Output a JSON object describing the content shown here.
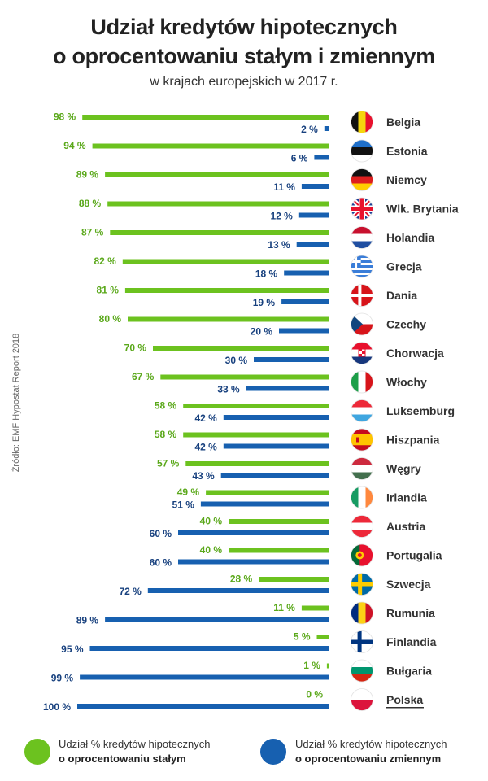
{
  "title_line1": "Udział kredytów hipotecznych",
  "title_line2": "o oprocentowaniu stałym i zmiennym",
  "subtitle": "w krajach europejskich w 2017 r.",
  "source": "Źródło: EMF Hypostat Report 2018",
  "colors": {
    "fixed": "#6cc21f",
    "variable": "#1760b0",
    "fixed_text": "#5aa81a",
    "variable_text": "#17407e"
  },
  "legend": {
    "fixed_line1": "Udział % kredytów hipotecznych",
    "fixed_line2": "o oprocentowaniu stałym",
    "variable_line1": "Udział % kredytów hipotecznych",
    "variable_line2": "o oprocentowaniu zmiennym"
  },
  "chart_data": {
    "type": "bar",
    "orientation": "horizontal",
    "unit": "%",
    "title": "Udział kredytów hipotecznych o oprocentowaniu stałym i zmiennym",
    "subtitle": "w krajach europejskich w 2017 r.",
    "xlim": [
      0,
      100
    ],
    "categories": [
      "Belgia",
      "Estonia",
      "Niemcy",
      "Wlk. Brytania",
      "Holandia",
      "Grecja",
      "Dania",
      "Czechy",
      "Chorwacja",
      "Włochy",
      "Luksemburg",
      "Hiszpania",
      "Węgry",
      "Irlandia",
      "Austria",
      "Portugalia",
      "Szwecja",
      "Rumunia",
      "Finlandia",
      "Bułgaria",
      "Polska"
    ],
    "flags": [
      "belgium-flag-icon",
      "estonia-flag-icon",
      "germany-flag-icon",
      "uk-flag-icon",
      "netherlands-flag-icon",
      "greece-flag-icon",
      "denmark-flag-icon",
      "czechia-flag-icon",
      "croatia-flag-icon",
      "italy-flag-icon",
      "luxembourg-flag-icon",
      "spain-flag-icon",
      "hungary-flag-icon",
      "ireland-flag-icon",
      "austria-flag-icon",
      "portugal-flag-icon",
      "sweden-flag-icon",
      "romania-flag-icon",
      "finland-flag-icon",
      "bulgaria-flag-icon",
      "poland-flag-icon"
    ],
    "series": [
      {
        "name": "Udział % kredytów hipotecznych o oprocentowaniu stałym",
        "values": [
          98,
          94,
          89,
          88,
          87,
          82,
          81,
          80,
          70,
          67,
          58,
          58,
          57,
          49,
          40,
          40,
          28,
          11,
          5,
          1,
          0
        ],
        "labels": [
          "98 %",
          "94 %",
          "89 %",
          "88 %",
          "87 %",
          "82 %",
          "81 %",
          "80 %",
          "70 %",
          "67 %",
          "58 %",
          "58 %",
          "57 %",
          "49 %",
          "40 %",
          "40 %",
          "28 %",
          "11 %",
          "5 %",
          "1 %",
          "0 %"
        ]
      },
      {
        "name": "Udział % kredytów hipotecznych o oprocentowaniu zmiennym",
        "values": [
          2,
          6,
          11,
          12,
          13,
          18,
          19,
          20,
          30,
          33,
          42,
          42,
          43,
          51,
          60,
          60,
          72,
          89,
          95,
          99,
          100
        ],
        "labels": [
          "2 %",
          "6 %",
          "11 %",
          "12 %",
          "13 %",
          "18 %",
          "19 %",
          "20 %",
          "30 %",
          "33 %",
          "42 %",
          "42 %",
          "43 %",
          "51 %",
          "60 %",
          "60 %",
          "72 %",
          "89 %",
          "95 %",
          "99 %",
          "100 %"
        ]
      }
    ],
    "highlighted_category": "Polska"
  }
}
